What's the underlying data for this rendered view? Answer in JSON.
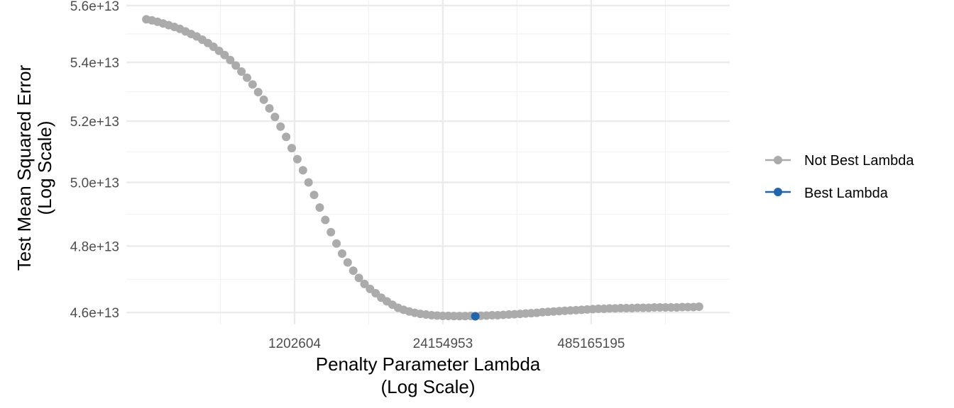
{
  "chart_data": {
    "type": "scatter",
    "title": "",
    "xlabel": "Penalty Parameter Lambda",
    "xlabel_sub": "(Log Scale)",
    "ylabel": "Test Mean Squared Error",
    "ylabel_sub": "(Log Scale)",
    "x_scale": "log",
    "y_scale": "log",
    "xlim": [
      40000,
      8000000000
    ],
    "ylim": [
      45650000000000.0,
      56200000000000.0
    ],
    "x_ticks": [
      {
        "value": 1202604,
        "label": "1202604"
      },
      {
        "value": 24154953,
        "label": "24154953"
      },
      {
        "value": 485165195,
        "label": "485165195"
      }
    ],
    "y_ticks": [
      {
        "value": 46000000000000.0,
        "label": "4.6e+13"
      },
      {
        "value": 48000000000000.0,
        "label": "4.8e+13"
      },
      {
        "value": 50000000000000.0,
        "label": "5.0e+13"
      },
      {
        "value": 52000000000000.0,
        "label": "5.2e+13"
      },
      {
        "value": 54000000000000.0,
        "label": "5.4e+13"
      },
      {
        "value": 56000000000000.0,
        "label": "5.6e+13"
      }
    ],
    "grid": true,
    "legend": {
      "position": "right",
      "entries": [
        {
          "label": "Not Best Lambda",
          "color": "#ABABAB"
        },
        {
          "label": "Best Lambda",
          "color": "#2166AC"
        }
      ]
    },
    "series": [
      {
        "name": "Not Best Lambda",
        "color": "#ABABAB",
        "x": [
          59925,
          67104,
          75143,
          84145,
          94226,
          105514,
          118155,
          132310,
          148161,
          165910,
          185786,
          208044,
          232968,
          260877,
          292131,
          327128,
          366318,
          410203,
          459346,
          514375,
          575998,
          645001,
          722273,
          808800,
          905695,
          1014197,
          1135697,
          1271753,
          1424108,
          1594716,
          1785762,
          1999697,
          2239263,
          2507528,
          2807931,
          3144320,
          3521014,
          3942833,
          4415186,
          4944128,
          5536438,
          6199713,
          6942446,
          7774157,
          8705507,
          9748432,
          10916300,
          12224074,
          13688514,
          15328392,
          17164726,
          19221052,
          21523685,
          24102180,
          26989576,
          30222856,
          33843498,
          37897892,
          42437990,
          52137120,
          58383135,
          65377446,
          73209671,
          81980197,
          91801404,
          102799194,
          115114552,
          128905298,
          144348144,
          161641000,
          181004000,
          202688000,
          226970000,
          254161000,
          284609000,
          318705000,
          356886000,
          399642000,
          447519000,
          501131000,
          561166000,
          628397000,
          703680000,
          787982000,
          882384000,
          988095000,
          1106470000,
          1239030000,
          1387460000,
          1553680000,
          1739810000,
          1948240000,
          2181640000,
          2443000000,
          2735680000,
          3063420000,
          3430420000,
          3841390000,
          4301590000
        ],
        "y": [
          55510000000000.0,
          55470000000000.0,
          55420000000000.0,
          55360000000000.0,
          55300000000000.0,
          55240000000000.0,
          55170000000000.0,
          55080000000000.0,
          54990000000000.0,
          54900000000000.0,
          54790000000000.0,
          54670000000000.0,
          54540000000000.0,
          54400000000000.0,
          54250000000000.0,
          54080000000000.0,
          53890000000000.0,
          53680000000000.0,
          53470000000000.0,
          53240000000000.0,
          52980000000000.0,
          52720000000000.0,
          52430000000000.0,
          52140000000000.0,
          51820000000000.0,
          51480000000000.0,
          51110000000000.0,
          50750000000000.0,
          50390000000000.0,
          50000000000000.0,
          49600000000000.0,
          49200000000000.0,
          48810000000000.0,
          48430000000000.0,
          48080000000000.0,
          47770000000000.0,
          47500000000000.0,
          47250000000000.0,
          47030000000000.0,
          46850000000000.0,
          46700000000000.0,
          46570000000000.0,
          46440000000000.0,
          46330000000000.0,
          46230000000000.0,
          46140000000000.0,
          46080000000000.0,
          46030000000000.0,
          45990000000000.0,
          45960000000000.0,
          45940000000000.0,
          45920000000000.0,
          45910000000000.0,
          45900000000000.0,
          45900000000000.0,
          45895000000000.0,
          45895000000000.0,
          45895000000000.0,
          45900000000000.0,
          45905000000000.0,
          45910000000000.0,
          45920000000000.0,
          45920000000000.0,
          45930000000000.0,
          45940000000000.0,
          45950000000000.0,
          45960000000000.0,
          45970000000000.0,
          45980000000000.0,
          45990000000000.0,
          46010000000000.0,
          46020000000000.0,
          46030000000000.0,
          46040000000000.0,
          46050000000000.0,
          46060000000000.0,
          46070000000000.0,
          46080000000000.0,
          46090000000000.0,
          46100000000000.0,
          46110000000000.0,
          46110000000000.0,
          46120000000000.0,
          46120000000000.0,
          46130000000000.0,
          46130000000000.0,
          46130000000000.0,
          46140000000000.0,
          46140000000000.0,
          46140000000000.0,
          46150000000000.0,
          46150000000000.0,
          46150000000000.0,
          46150000000000.0,
          46150000000000.0,
          46160000000000.0,
          46160000000000.0,
          46160000000000.0,
          46170000000000.0
        ]
      },
      {
        "name": "Best Lambda",
        "color": "#2166AC",
        "x": [
          46553000
        ],
        "y": [
          45890000000000.0
        ]
      }
    ]
  }
}
